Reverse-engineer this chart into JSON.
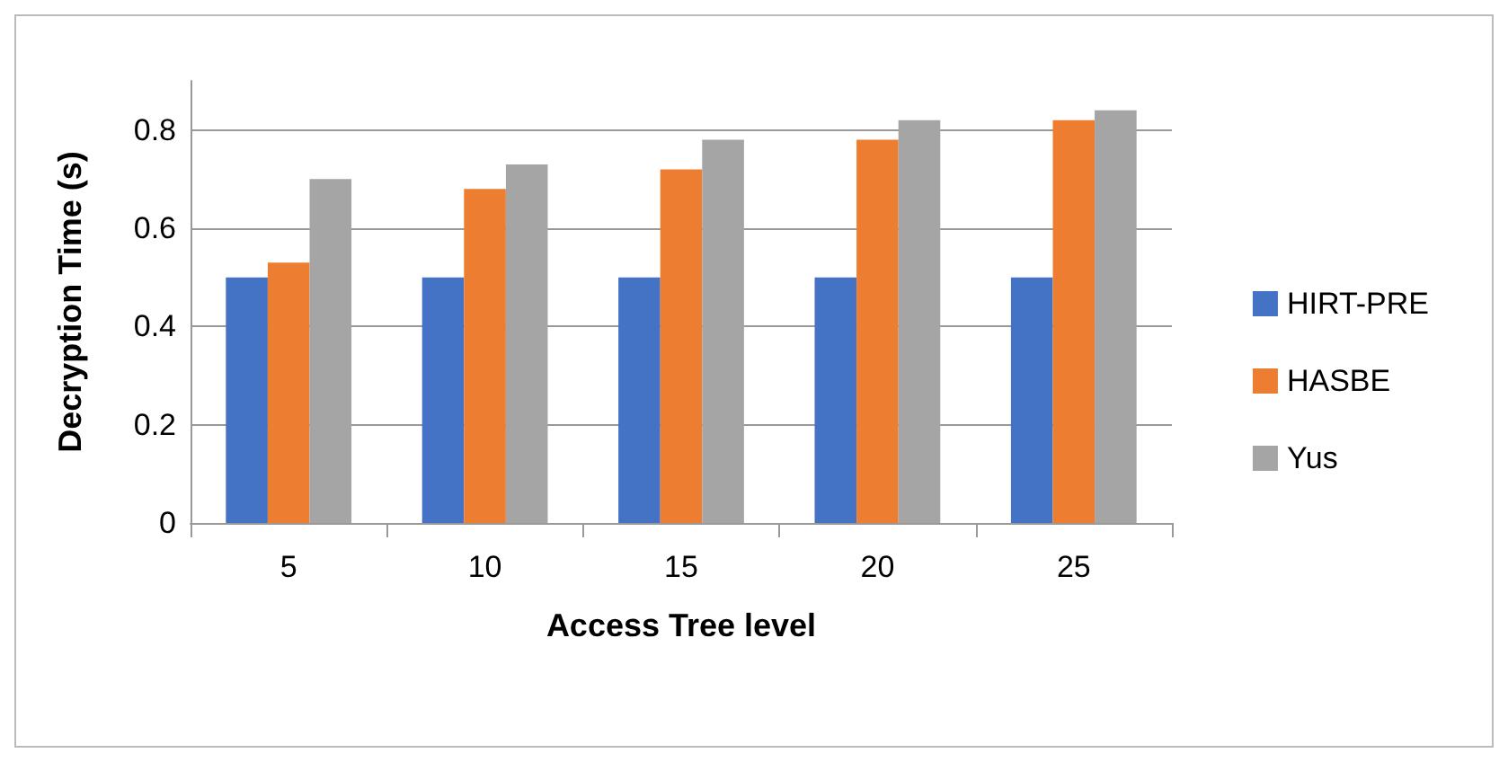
{
  "chart_data": {
    "type": "bar",
    "xlabel": "Access Tree level",
    "ylabel": "Decryption Time (s)",
    "categories": [
      "5",
      "10",
      "15",
      "20",
      "25"
    ],
    "series": [
      {
        "name": "HIRT-PRE",
        "color": "#4472c4",
        "values": [
          0.5,
          0.5,
          0.5,
          0.5,
          0.5
        ]
      },
      {
        "name": "HASBE",
        "color": "#ed7d31",
        "values": [
          0.53,
          0.68,
          0.72,
          0.78,
          0.82
        ]
      },
      {
        "name": "Yus",
        "color": "#a5a5a5",
        "values": [
          0.7,
          0.73,
          0.78,
          0.82,
          0.84
        ]
      }
    ],
    "ylim": [
      0,
      0.9
    ],
    "yticks": [
      0,
      0.2,
      0.4,
      0.6,
      0.8
    ],
    "grid": "y",
    "legend": "right"
  }
}
